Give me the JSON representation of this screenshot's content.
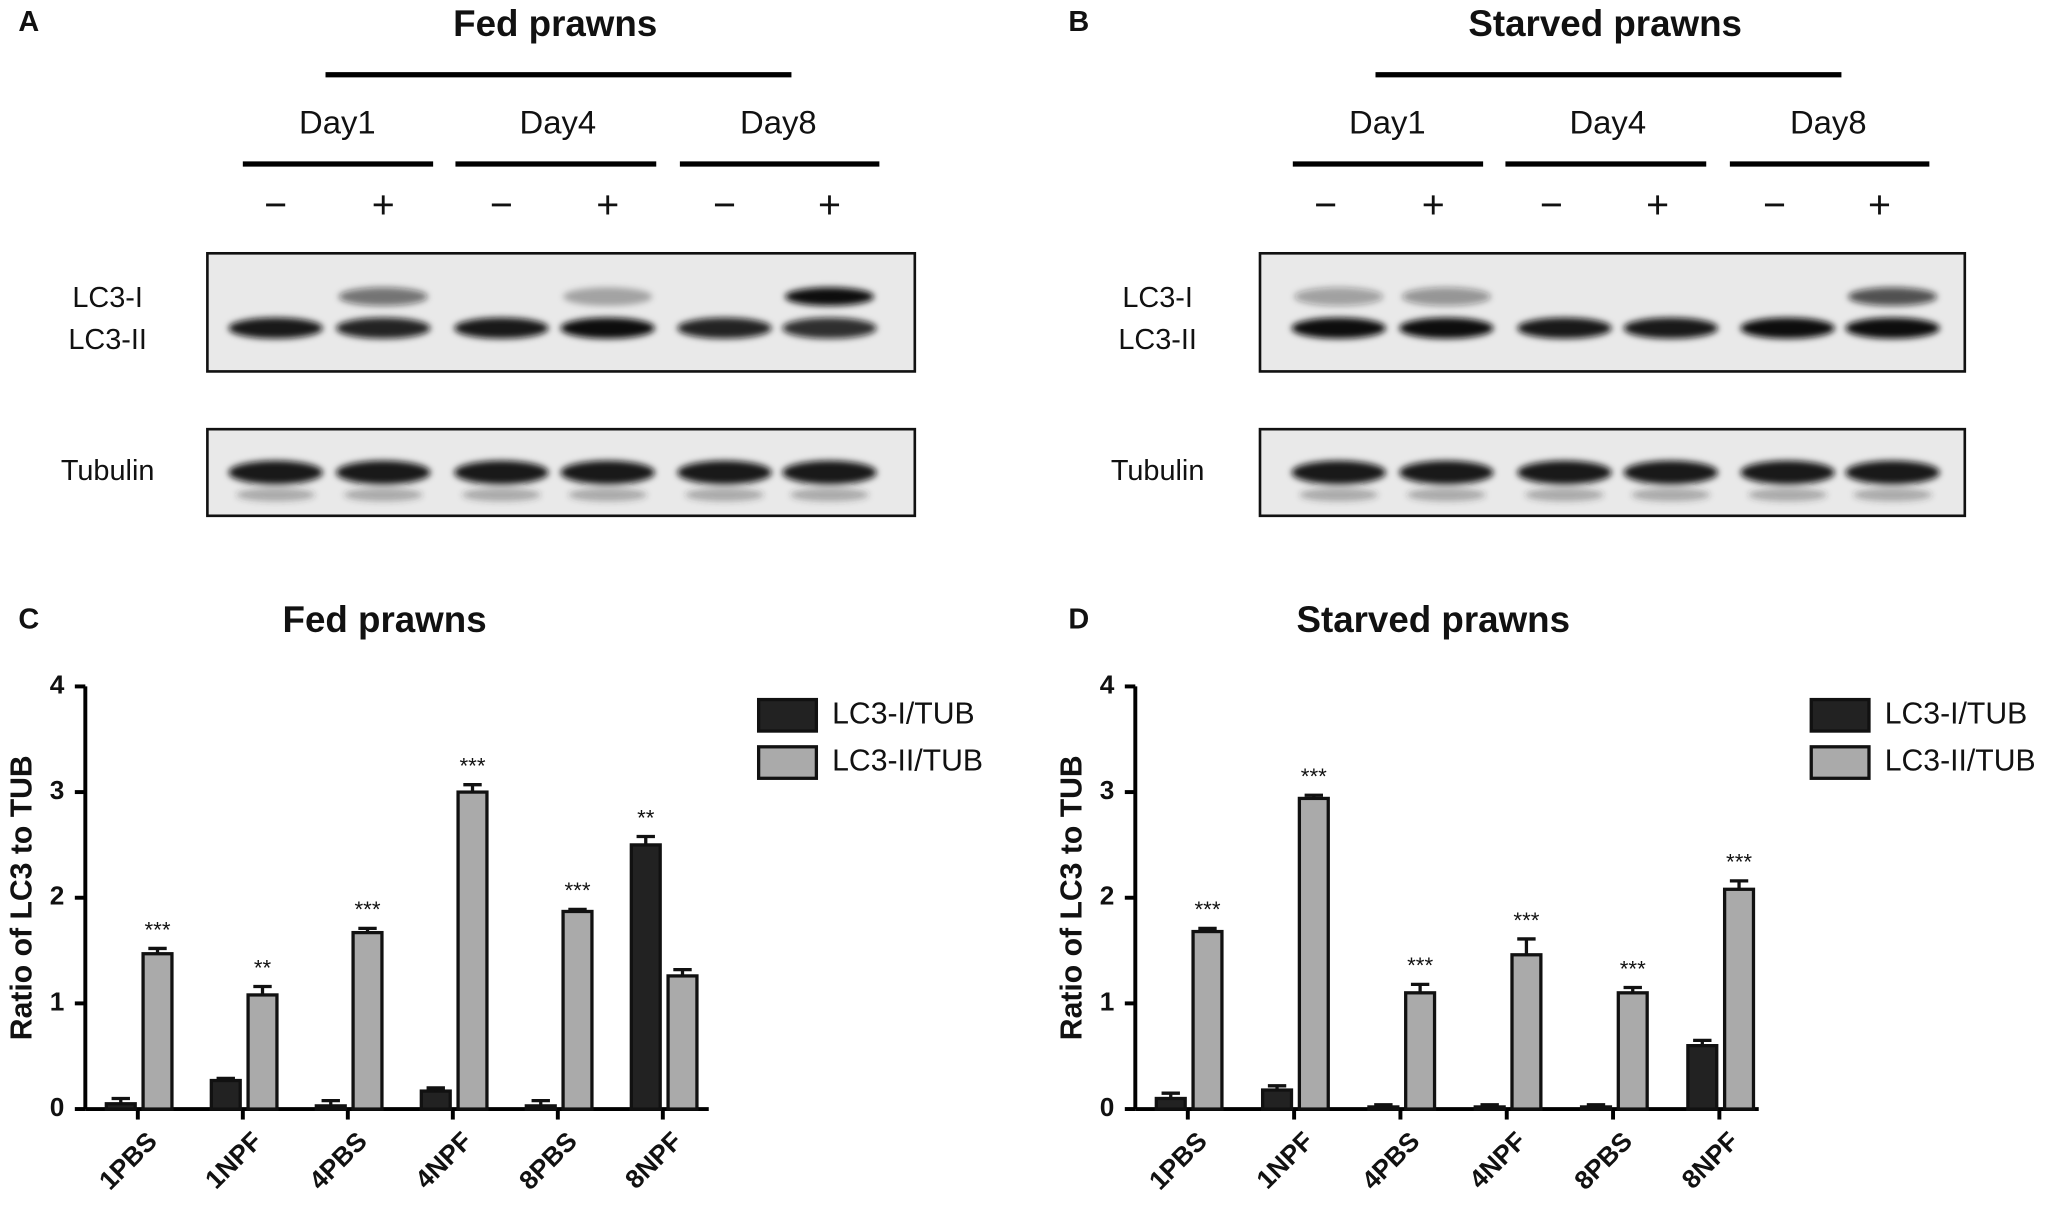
{
  "figure": {
    "panels": [
      {
        "letter": "A",
        "title": "Fed prawns",
        "days": [
          "Day1",
          "Day4",
          "Day8"
        ],
        "treatments": [
          "−",
          "+",
          "−",
          "+",
          "−",
          "+"
        ],
        "bands": [
          "LC3-I",
          "LC3-II"
        ],
        "loading": "Tubulin"
      },
      {
        "letter": "B",
        "title": "Starved prawns",
        "days": [
          "Day1",
          "Day4",
          "Day8"
        ],
        "treatments": [
          "−",
          "+",
          "−",
          "+",
          "−",
          "+"
        ],
        "bands": [
          "LC3-I",
          "LC3-II"
        ],
        "loading": "Tubulin"
      }
    ]
  },
  "chart_data": [
    {
      "type": "bar",
      "panel": "C",
      "title": "Fed prawns",
      "ylabel": "Ratio of LC3 to TUB",
      "categories": [
        "1PBS",
        "1NPF",
        "4PBS",
        "4NPF",
        "8PBS",
        "8NPF"
      ],
      "series": [
        {
          "name": "LC3-I/TUB",
          "color": "#222222",
          "values": [
            0.05,
            0.27,
            0.03,
            0.17,
            0.03,
            2.5
          ],
          "errors": [
            0.05,
            0.02,
            0.05,
            0.03,
            0.05,
            0.08
          ],
          "significance": [
            null,
            null,
            null,
            null,
            null,
            "**"
          ]
        },
        {
          "name": "LC3-II/TUB",
          "color": "#aaaaaa",
          "values": [
            1.47,
            1.08,
            1.67,
            3.0,
            1.87,
            1.26
          ],
          "errors": [
            0.05,
            0.08,
            0.04,
            0.07,
            0.02,
            0.06
          ],
          "significance": [
            "***",
            "**",
            "***",
            "***",
            "***",
            null
          ]
        }
      ],
      "ylim": [
        0,
        4
      ],
      "yticks": [
        0,
        1,
        2,
        3,
        4
      ],
      "legend": "upper right"
    },
    {
      "type": "bar",
      "panel": "D",
      "title": "Starved prawns",
      "ylabel": "Ratio of LC3 to TUB",
      "categories": [
        "1PBS",
        "1NPF",
        "4PBS",
        "4NPF",
        "8PBS",
        "8NPF"
      ],
      "series": [
        {
          "name": "LC3-I/TUB",
          "color": "#222222",
          "values": [
            0.1,
            0.18,
            0.02,
            0.02,
            0.02,
            0.6
          ],
          "errors": [
            0.05,
            0.04,
            0.02,
            0.02,
            0.02,
            0.05
          ],
          "significance": [
            null,
            null,
            null,
            null,
            null,
            null
          ]
        },
        {
          "name": "LC3-II/TUB",
          "color": "#aaaaaa",
          "values": [
            1.68,
            2.94,
            1.1,
            1.46,
            1.1,
            2.08
          ],
          "errors": [
            0.03,
            0.03,
            0.08,
            0.15,
            0.05,
            0.08
          ],
          "significance": [
            "***",
            "***",
            "***",
            "***",
            "***",
            "***"
          ]
        }
      ],
      "ylim": [
        0,
        4
      ],
      "yticks": [
        0,
        1,
        2,
        3,
        4
      ],
      "legend": "upper right"
    }
  ]
}
